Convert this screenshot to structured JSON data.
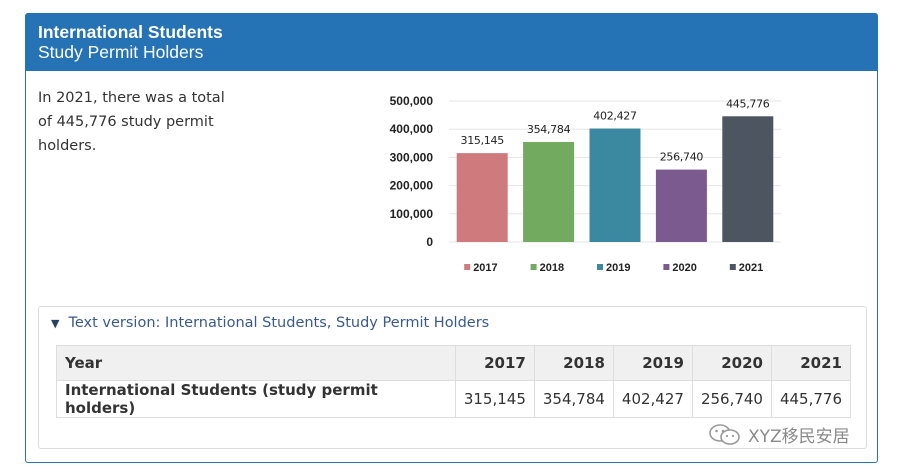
{
  "panel": {
    "title_line1": "International Students",
    "title_line2": "Study Permit Holders",
    "summary": "In 2021, there was a total of 445,776 study permit holders."
  },
  "chart_data": {
    "type": "bar",
    "categories": [
      "2017",
      "2018",
      "2019",
      "2020",
      "2021"
    ],
    "values": [
      315145,
      354784,
      402427,
      256740,
      445776
    ],
    "value_labels": [
      "315,145",
      "354,784",
      "402,427",
      "256,740",
      "445,776"
    ],
    "colors": [
      "#cf7a7d",
      "#72aa5f",
      "#3b89a0",
      "#7a5a8f",
      "#4c5560"
    ],
    "ylim": [
      0,
      500000
    ],
    "yticks": [
      0,
      100000,
      200000,
      300000,
      400000,
      500000
    ],
    "ytick_labels": [
      "0",
      "100,000",
      "200,000",
      "300,000",
      "400,000",
      "500,000"
    ],
    "legend": [
      "2017",
      "2018",
      "2019",
      "2020",
      "2021"
    ],
    "legend_position": "bottom",
    "grid": true,
    "title": "",
    "xlabel": "",
    "ylabel": ""
  },
  "text_version": {
    "toggle_label": "Text version: International Students, Study Permit Holders",
    "header_year": "Year",
    "years": [
      "2017",
      "2018",
      "2019",
      "2020",
      "2021"
    ],
    "row_label": "International Students (study permit holders)",
    "row_values": [
      "315,145",
      "354,784",
      "402,427",
      "256,740",
      "445,776"
    ]
  },
  "watermark": {
    "text": "XYZ移民安居"
  }
}
